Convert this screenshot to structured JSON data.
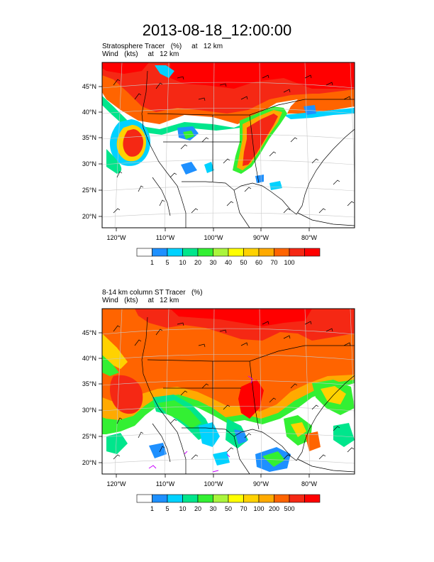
{
  "title": "2013-08-18_12:00:00",
  "panels": [
    {
      "title_line1": "Stratosphere Tracer   (%)     at   12 km",
      "title_line2": "Wind   (kts)     at   12 km",
      "lat_labels": [
        "45°N",
        "40°N",
        "35°N",
        "30°N",
        "25°N",
        "20°N"
      ],
      "lon_labels": [
        "120°W",
        "110°W",
        "100°W",
        "90°W",
        "80°W"
      ],
      "colorbar": {
        "colors": [
          "#ffffff",
          "#1e90ff",
          "#00d2ff",
          "#00e68c",
          "#33f033",
          "#aaf53c",
          "#ffff00",
          "#ffd200",
          "#ffaa00",
          "#ff6400",
          "#f52814",
          "#ff0000"
        ],
        "labels": [
          "1",
          "5",
          "10",
          "20",
          "30",
          "40",
          "50",
          "60",
          "70",
          "100"
        ]
      }
    },
    {
      "title_line1": "8-14 km column ST Tracer   (%)",
      "title_line2": "Wind   (kts)     at   12 km",
      "lat_labels": [
        "45°N",
        "40°N",
        "35°N",
        "30°N",
        "25°N",
        "20°N"
      ],
      "lon_labels": [
        "120°W",
        "110°W",
        "100°W",
        "90°W",
        "80°W"
      ],
      "colorbar": {
        "colors": [
          "#ffffff",
          "#1e90ff",
          "#00d2ff",
          "#00e68c",
          "#33f033",
          "#aaf53c",
          "#ffff00",
          "#ffd200",
          "#ffaa00",
          "#ff6400",
          "#f52814",
          "#ff0000"
        ],
        "labels": [
          "1",
          "5",
          "10",
          "20",
          "30",
          "50",
          "70",
          "100",
          "200",
          "500"
        ]
      }
    }
  ]
}
